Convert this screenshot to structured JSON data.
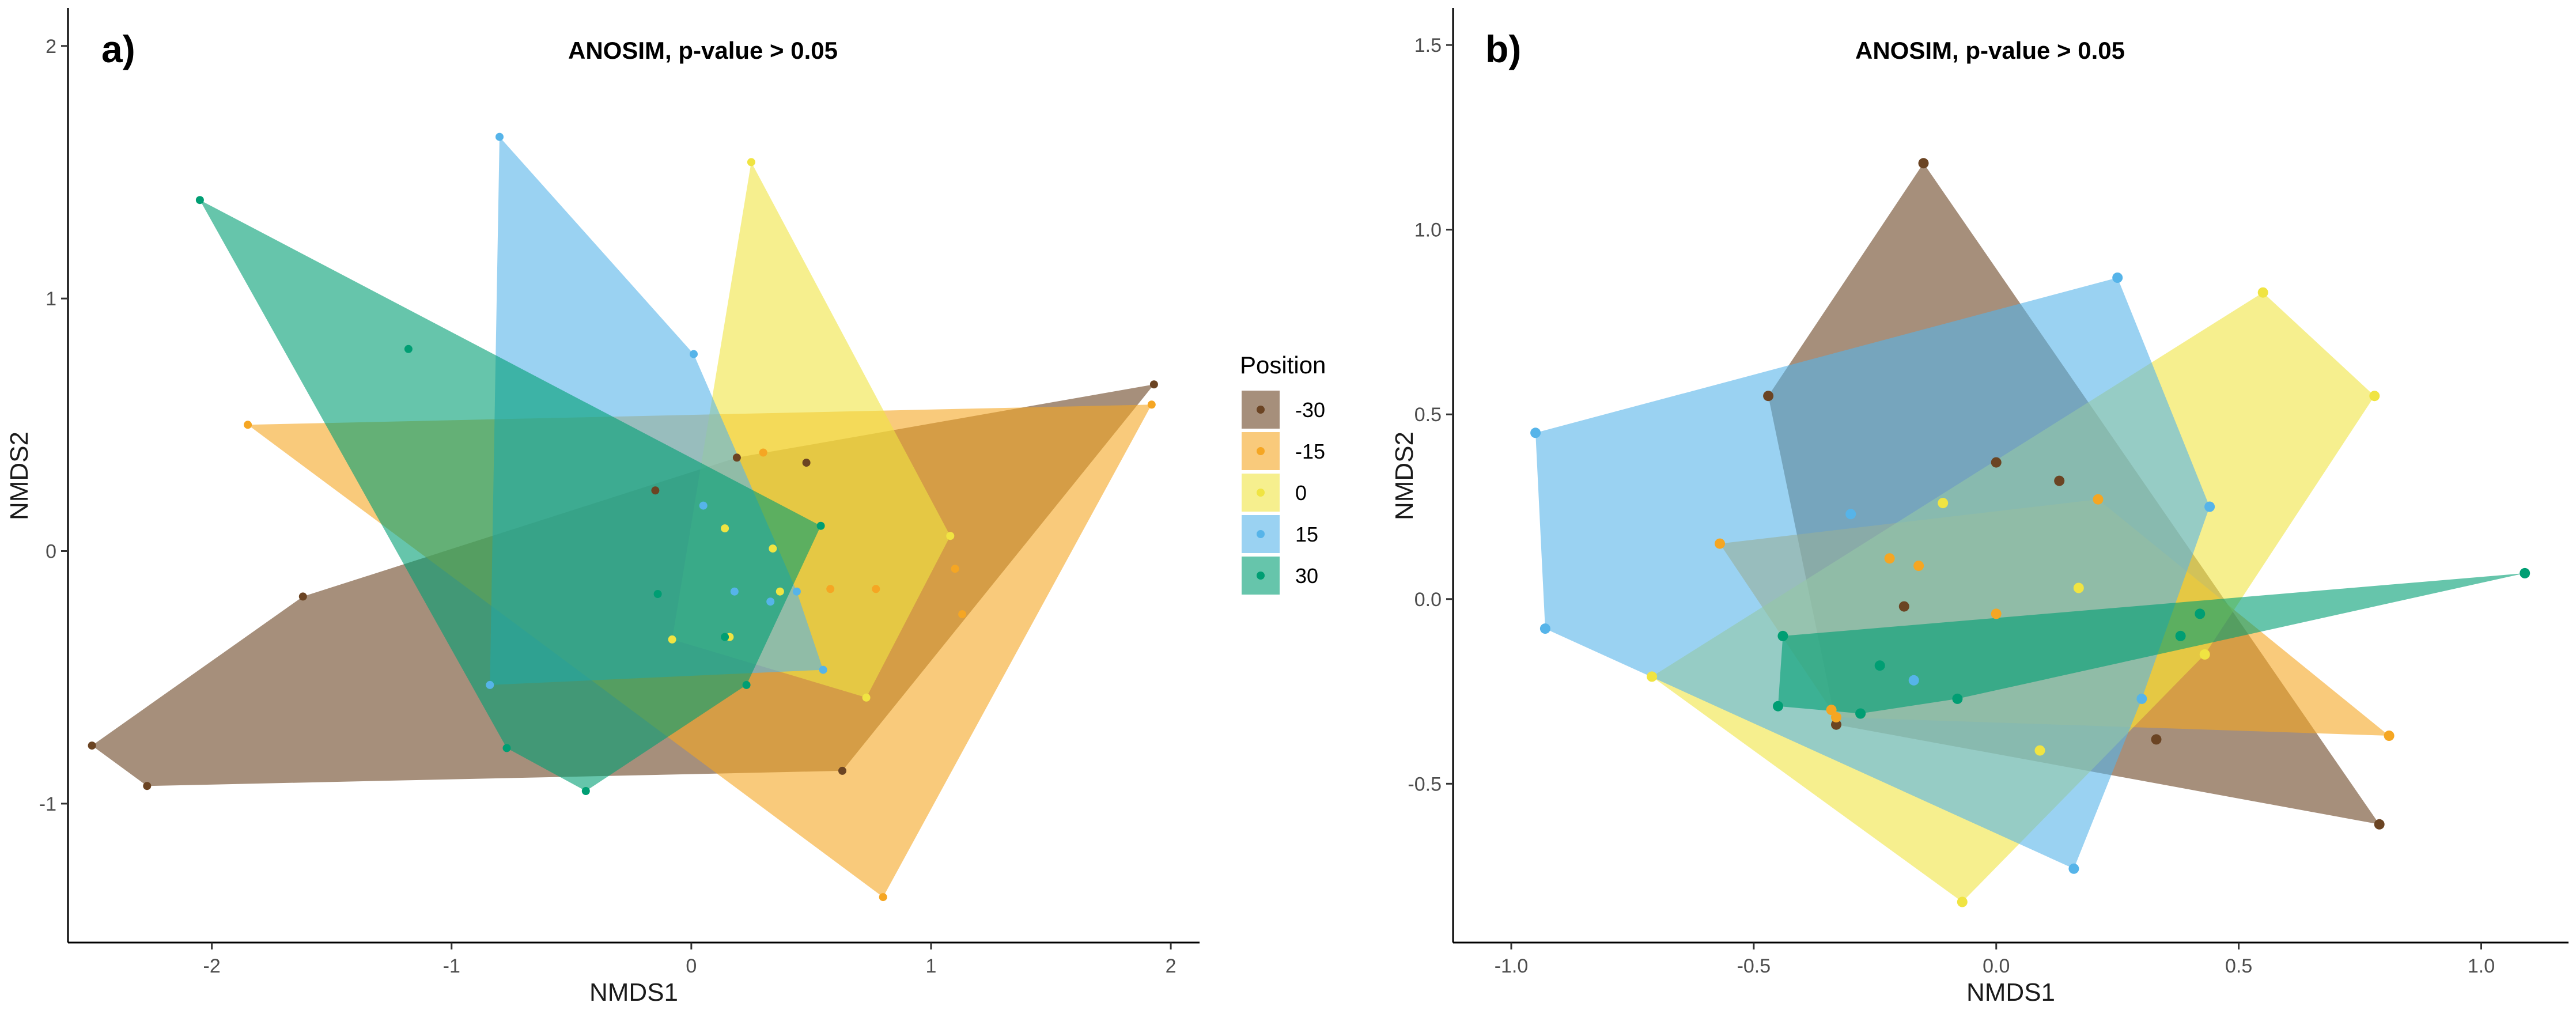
{
  "legend": {
    "title": "Position",
    "entries": [
      {
        "label": "-30",
        "color": "#6b4423"
      },
      {
        "label": "-15",
        "color": "#f5a623"
      },
      {
        "label": "0",
        "color": "#f0e442"
      },
      {
        "label": "15",
        "color": "#56b4e9"
      },
      {
        "label": "30",
        "color": "#009e73"
      }
    ]
  },
  "chart_data": [
    {
      "panel_label": "a)",
      "type": "scatter",
      "title": "ANOSIM, p-value > 0.05",
      "xlabel": "NMDS1",
      "ylabel": "NMDS2",
      "xlim": [
        -2.6,
        2.12
      ],
      "ylim": [
        -1.55,
        2.15
      ],
      "xticks": [
        -2,
        -1,
        0,
        1,
        2
      ],
      "yticks": [
        -1,
        0,
        1,
        2
      ],
      "hulls": true,
      "series": [
        {
          "name": "-30",
          "points": [
            [
              -2.5,
              -0.77
            ],
            [
              -2.27,
              -0.93
            ],
            [
              -1.62,
              -0.18
            ],
            [
              -0.15,
              0.24
            ],
            [
              0.19,
              0.37
            ],
            [
              0.48,
              0.35
            ],
            [
              0.63,
              -0.87
            ],
            [
              1.93,
              0.66
            ]
          ]
        },
        {
          "name": "-15",
          "points": [
            [
              -1.85,
              0.5
            ],
            [
              0.3,
              0.39
            ],
            [
              0.58,
              -0.15
            ],
            [
              0.77,
              -0.15
            ],
            [
              0.8,
              -1.37
            ],
            [
              1.1,
              -0.07
            ],
            [
              1.13,
              -0.25
            ],
            [
              1.92,
              0.58
            ]
          ]
        },
        {
          "name": "0",
          "points": [
            [
              0.25,
              1.54
            ],
            [
              -0.08,
              -0.35
            ],
            [
              0.14,
              0.09
            ],
            [
              0.34,
              0.01
            ],
            [
              0.37,
              -0.16
            ],
            [
              0.73,
              -0.58
            ],
            [
              1.08,
              0.06
            ],
            [
              0.16,
              -0.34
            ]
          ]
        },
        {
          "name": "15",
          "points": [
            [
              -0.8,
              1.64
            ],
            [
              0.01,
              0.78
            ],
            [
              0.05,
              0.18
            ],
            [
              -0.84,
              -0.53
            ],
            [
              0.18,
              -0.16
            ],
            [
              0.33,
              -0.2
            ],
            [
              0.44,
              -0.16
            ],
            [
              0.55,
              -0.47
            ]
          ]
        },
        {
          "name": "30",
          "points": [
            [
              -2.05,
              1.39
            ],
            [
              -1.18,
              0.8
            ],
            [
              -0.77,
              -0.78
            ],
            [
              -0.44,
              -0.95
            ],
            [
              -0.14,
              -0.17
            ],
            [
              0.14,
              -0.34
            ],
            [
              0.23,
              -0.53
            ],
            [
              0.54,
              0.1
            ]
          ]
        }
      ]
    },
    {
      "panel_label": "b)",
      "type": "scatter",
      "title": "ANOSIM, p-value > 0.05",
      "xlabel": "NMDS1",
      "ylabel": "NMDS2",
      "xlim": [
        -1.12,
        1.18
      ],
      "ylim": [
        -0.93,
        1.6
      ],
      "xticks": [
        -1.0,
        -0.5,
        0.0,
        0.5,
        1.0
      ],
      "xtick_labels": [
        "-1.0",
        "-0.5",
        "0.0",
        "0.5",
        "1.0"
      ],
      "yticks": [
        -0.5,
        0.0,
        0.5,
        1.0,
        1.5
      ],
      "ytick_labels": [
        "-0.5",
        "0.0",
        "0.5",
        "1.0",
        "1.5"
      ],
      "hulls": true,
      "series": [
        {
          "name": "-30",
          "points": [
            [
              -0.15,
              1.18
            ],
            [
              -0.47,
              0.55
            ],
            [
              0.0,
              0.37
            ],
            [
              0.13,
              0.32
            ],
            [
              -0.19,
              -0.02
            ],
            [
              -0.33,
              -0.34
            ],
            [
              0.33,
              -0.38
            ],
            [
              0.79,
              -0.61
            ]
          ]
        },
        {
          "name": "-15",
          "points": [
            [
              -0.57,
              0.15
            ],
            [
              -0.22,
              0.11
            ],
            [
              -0.16,
              0.09
            ],
            [
              0.0,
              -0.04
            ],
            [
              0.21,
              0.27
            ],
            [
              -0.34,
              -0.3
            ],
            [
              -0.33,
              -0.32
            ],
            [
              0.81,
              -0.37
            ]
          ]
        },
        {
          "name": "0",
          "points": [
            [
              0.55,
              0.83
            ],
            [
              0.78,
              0.55
            ],
            [
              -0.11,
              0.26
            ],
            [
              0.17,
              0.03
            ],
            [
              0.43,
              -0.15
            ],
            [
              -0.71,
              -0.21
            ],
            [
              0.09,
              -0.41
            ],
            [
              -0.07,
              -0.82
            ]
          ]
        },
        {
          "name": "15",
          "points": [
            [
              -0.95,
              0.45
            ],
            [
              0.25,
              0.87
            ],
            [
              0.44,
              0.25
            ],
            [
              -0.3,
              0.23
            ],
            [
              -0.93,
              -0.08
            ],
            [
              -0.17,
              -0.22
            ],
            [
              0.3,
              -0.27
            ],
            [
              0.16,
              -0.73
            ]
          ]
        },
        {
          "name": "30",
          "points": [
            [
              1.09,
              0.07
            ],
            [
              0.42,
              -0.04
            ],
            [
              0.38,
              -0.1
            ],
            [
              -0.44,
              -0.1
            ],
            [
              -0.24,
              -0.18
            ],
            [
              -0.08,
              -0.27
            ],
            [
              -0.28,
              -0.31
            ],
            [
              -0.45,
              -0.29
            ]
          ]
        }
      ]
    }
  ]
}
